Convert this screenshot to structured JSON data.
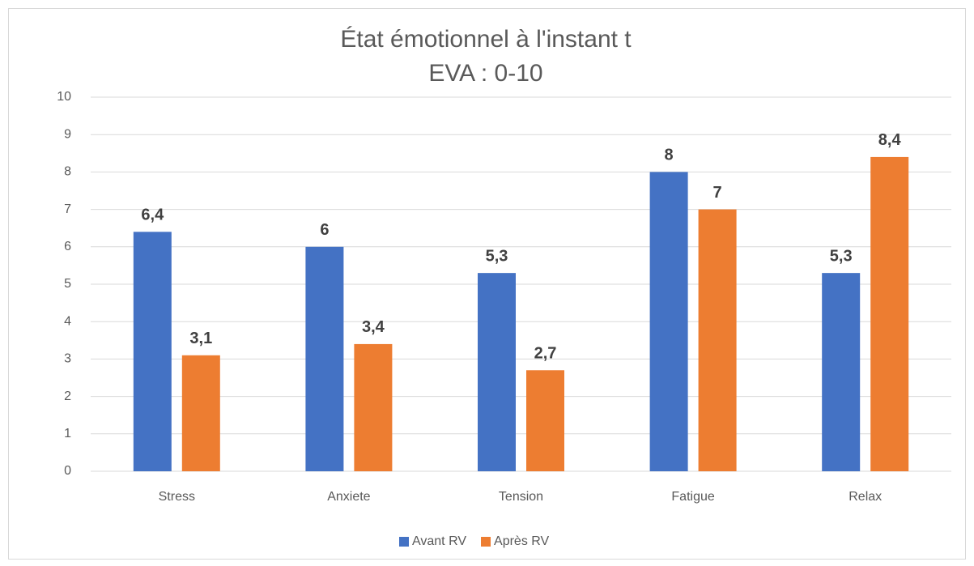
{
  "chart_data": {
    "type": "bar",
    "title": "État émotionnel à l'instant t",
    "subtitle": "EVA : 0-10",
    "categories": [
      "Stress",
      "Anxiete",
      "Tension",
      "Fatigue",
      "Relax"
    ],
    "series": [
      {
        "name": "Avant RV",
        "color": "#4472c4",
        "values": [
          6.4,
          6,
          5.3,
          8,
          5.3
        ],
        "value_labels": [
          "6,4",
          "6",
          "5,3",
          "8",
          "5,3"
        ]
      },
      {
        "name": "Après RV",
        "color": "#ed7d31",
        "values": [
          3.1,
          3.4,
          2.7,
          7,
          8.4
        ],
        "value_labels": [
          "3,1",
          "3,4",
          "2,7",
          "7",
          "8,4"
        ]
      }
    ],
    "ylim": [
      0,
      10
    ],
    "yticks": [
      0,
      1,
      2,
      3,
      4,
      5,
      6,
      7,
      8,
      9,
      10
    ],
    "grid": true,
    "legend": "bottom"
  }
}
